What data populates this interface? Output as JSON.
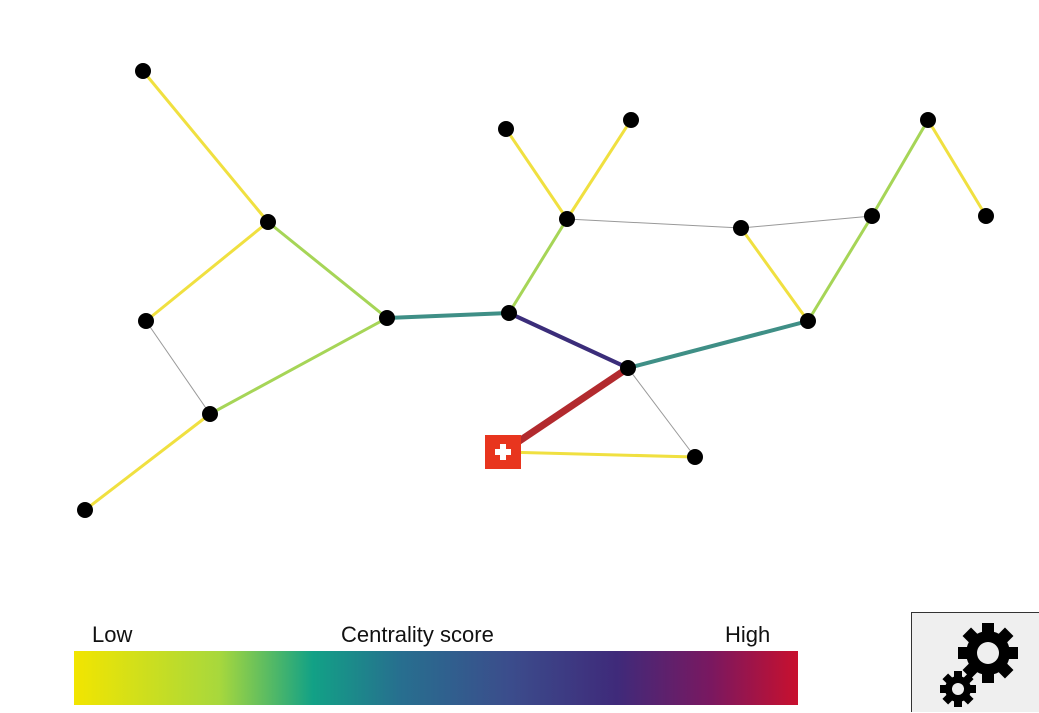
{
  "legend": {
    "low_label": "Low",
    "title": "Centrality score",
    "high_label": "High",
    "gradient_colors": [
      "#f2e500",
      "#a8d83c",
      "#12a186",
      "#276f8f",
      "#3b4d8c",
      "#3f2a7a",
      "#7a1860",
      "#c8102e"
    ]
  },
  "settings_button": {
    "icon": "gears-icon"
  },
  "network": {
    "selected_node_icon": "red-cross-icon",
    "selected_node_color": "#e8351e",
    "edge_colors": {
      "low": "#f0e040",
      "mid_low": "#a6d557",
      "mid": "#3f8f86",
      "high": "#3b2d7a",
      "highest": "#b22a2e",
      "none": "#999999"
    }
  }
}
